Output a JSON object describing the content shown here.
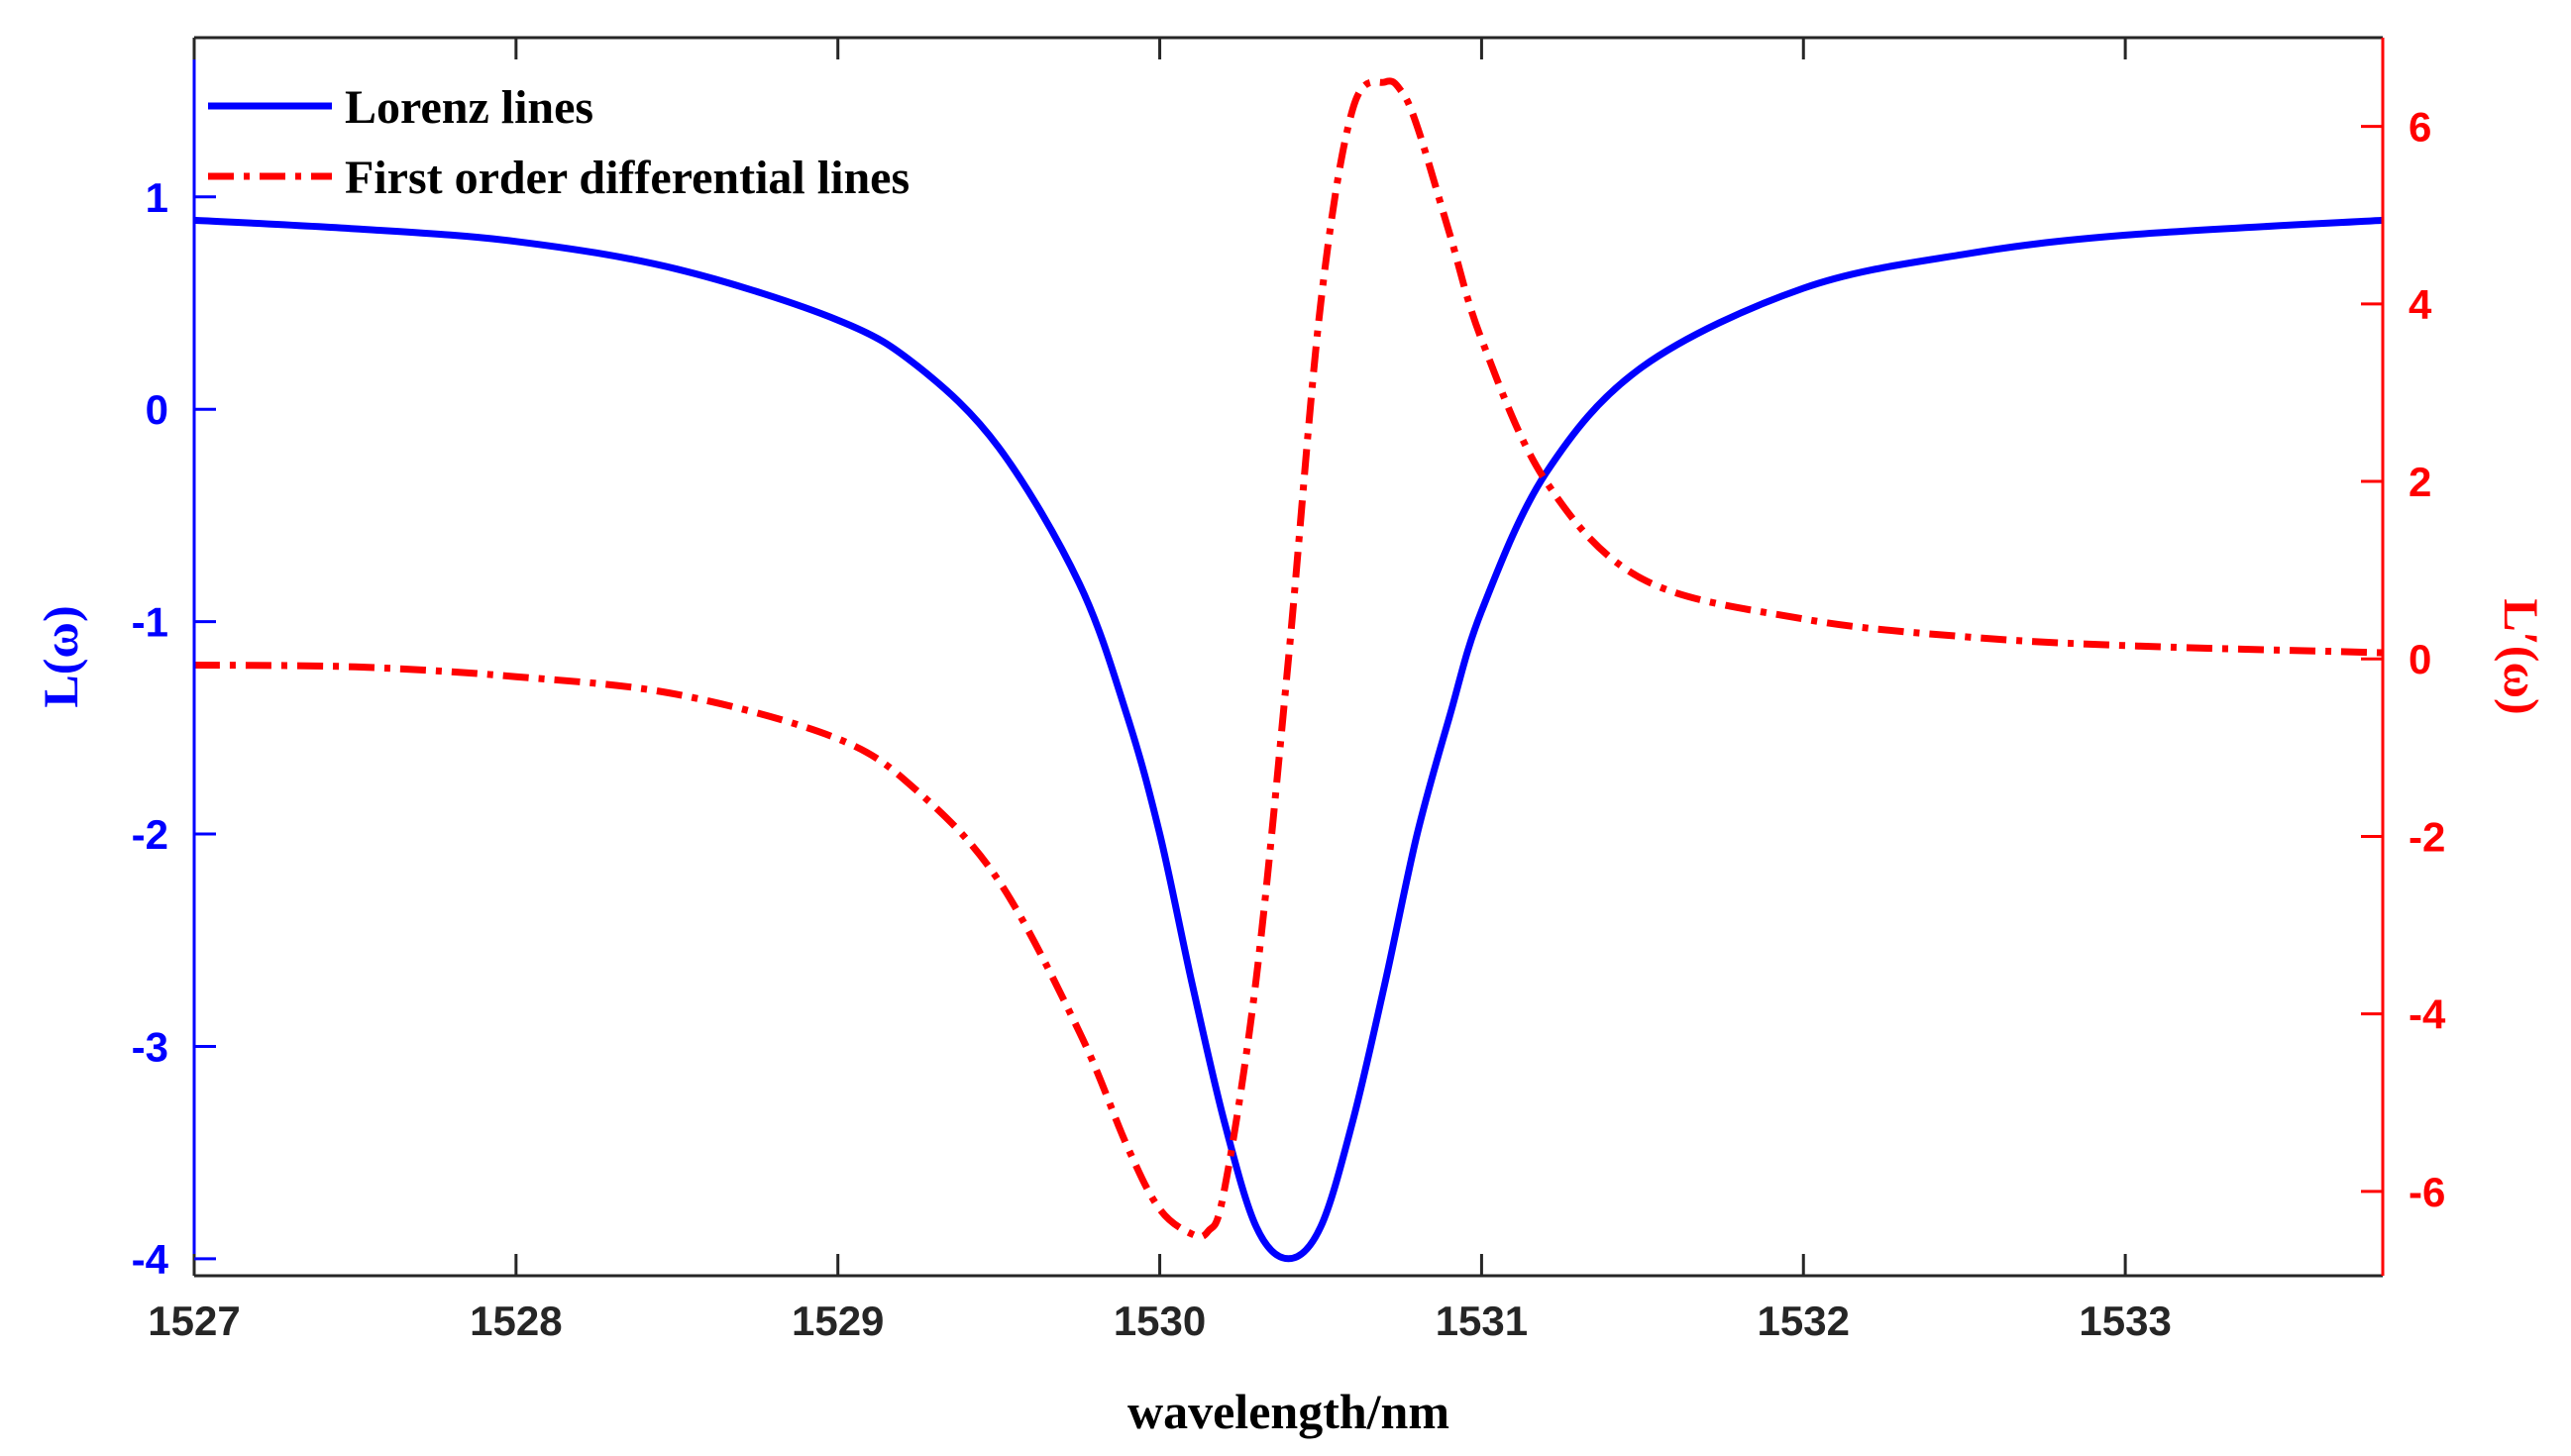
{
  "chart_data": {
    "type": "line",
    "xlabel": "wavelength/nm",
    "ylabel_left": "L(ω)",
    "ylabel_right": "L′(ω)",
    "xlim": [
      1527,
      1533.8
    ],
    "ylim_left": [
      -4.08,
      1.75
    ],
    "ylim_right": [
      -6.95,
      7.0
    ],
    "x_ticks": [
      1527,
      1528,
      1529,
      1530,
      1531,
      1532,
      1533
    ],
    "x_tick_labels": [
      "1527",
      "1528",
      "1529",
      "1530",
      "1531",
      "1532",
      "1533"
    ],
    "y_left_ticks": [
      -4,
      -3,
      -2,
      -1,
      0,
      1
    ],
    "y_left_tick_labels": [
      "-4",
      "-3",
      "-2",
      "-1",
      "0",
      "1"
    ],
    "y_right_ticks": [
      -6,
      -4,
      -2,
      0,
      2,
      4,
      6
    ],
    "y_right_tick_labels": [
      "-6",
      "-4",
      "-2",
      "0",
      "2",
      "4",
      "6"
    ],
    "colors": {
      "left_axis": "#0000ff",
      "right_axis": "#ff0000",
      "frame": "#262626"
    },
    "legend": {
      "position": "top-left",
      "entries": [
        "Lorenz lines",
        "First order differential lines"
      ]
    },
    "series": [
      {
        "name": "Lorenz lines",
        "axis": "left",
        "style": "solid",
        "color": "#0000ff",
        "x": [
          1527,
          1527.5,
          1528,
          1528.5,
          1529,
          1529.25,
          1529.5,
          1529.75,
          1529.9,
          1530,
          1530.1,
          1530.2,
          1530.3,
          1530.4,
          1530.5,
          1530.6,
          1530.7,
          1530.8,
          1530.9,
          1531,
          1531.2,
          1531.5,
          1532,
          1532.5,
          1533,
          1533.8
        ],
        "values": [
          0.89,
          0.85,
          0.79,
          0.66,
          0.42,
          0.2,
          -0.18,
          -0.82,
          -1.45,
          -2.0,
          -2.7,
          -3.35,
          -3.85,
          -4.0,
          -3.85,
          -3.35,
          -2.7,
          -2.0,
          -1.45,
          -0.95,
          -0.3,
          0.2,
          0.57,
          0.73,
          0.82,
          0.89
        ]
      },
      {
        "name": "First order differential lines",
        "axis": "right",
        "style": "dashdot",
        "color": "#ff0000",
        "x": [
          1527,
          1527.5,
          1528,
          1528.5,
          1529,
          1529.25,
          1529.5,
          1529.75,
          1529.9,
          1530,
          1530.1,
          1530.15,
          1530.2,
          1530.3,
          1530.4,
          1530.5,
          1530.6,
          1530.7,
          1530.75,
          1530.8,
          1530.9,
          1531,
          1531.2,
          1531.5,
          1532,
          1532.5,
          1533,
          1533.8
        ],
        "values": [
          -0.07,
          -0.09,
          -0.2,
          -0.4,
          -0.9,
          -1.5,
          -2.5,
          -4.2,
          -5.5,
          -6.2,
          -6.48,
          -6.45,
          -6.0,
          -3.6,
          0.0,
          4.0,
          6.2,
          6.5,
          6.4,
          6.0,
          4.8,
          3.6,
          2.0,
          0.9,
          0.45,
          0.25,
          0.15,
          0.07
        ]
      }
    ]
  }
}
